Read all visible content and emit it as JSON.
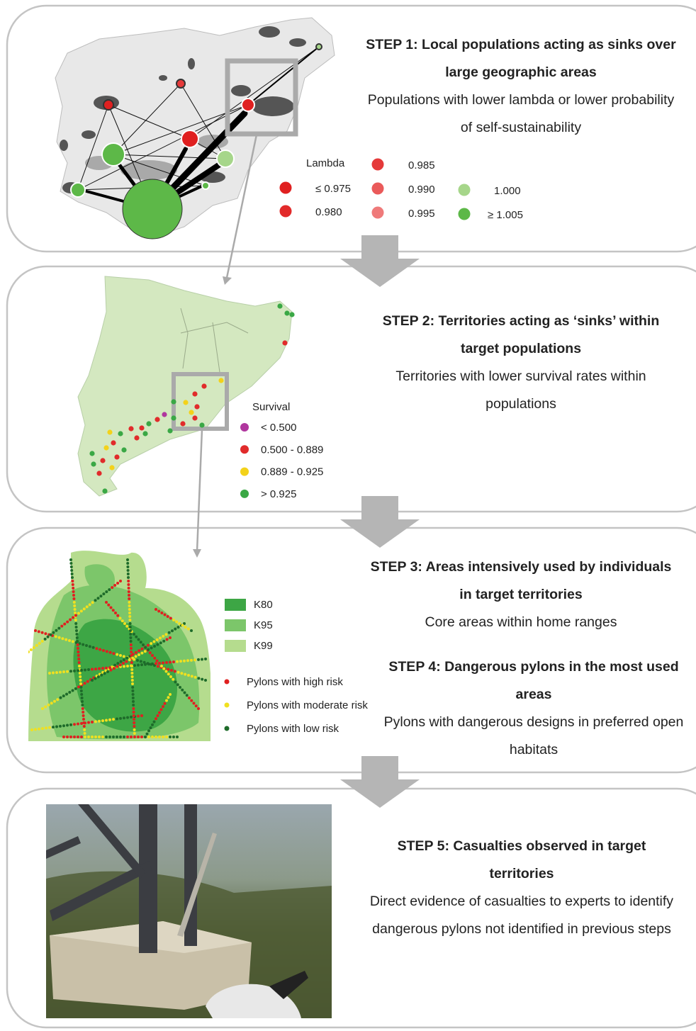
{
  "panels": [
    {
      "steps": [
        {
          "title": "STEP 1: Local populations acting as sinks over large geographic areas",
          "description": "Populations with lower lambda or lower probability of self-sustainability"
        }
      ],
      "legend": {
        "title": "Lambda",
        "items": [
          {
            "label": "≤ 0.975",
            "color": "#e02020"
          },
          {
            "label": "0.980",
            "color": "#e22a2a"
          },
          {
            "label": "0.985",
            "color": "#e53a3a"
          },
          {
            "label": "0.990",
            "color": "#ea5a5a"
          },
          {
            "label": "0.995",
            "color": "#ef7a7a"
          },
          {
            "label": "1.000",
            "color": "#a6d68a"
          },
          {
            "label": "≥ 1.005",
            "color": "#5db848"
          }
        ]
      }
    },
    {
      "steps": [
        {
          "title": "STEP 2: Territories acting as ‘sinks’ within target populations",
          "description": "Territories with lower survival rates within populations"
        }
      ],
      "legend": {
        "title": "Survival",
        "items": [
          {
            "label": "< 0.500",
            "color": "#b0369e"
          },
          {
            "label": "0.500 - 0.889",
            "color": "#e12b2b"
          },
          {
            "label": "0.889 - 0.925",
            "color": "#f3d21a"
          },
          {
            "label": "> 0.925",
            "color": "#3aa845"
          }
        ]
      }
    },
    {
      "steps": [
        {
          "title": "STEP 3: Areas intensively used by individuals in target territories",
          "description": "Core areas within home ranges"
        },
        {
          "title": "STEP 4: Dangerous pylons in the most used areas",
          "description": "Pylons with dangerous designs in preferred open habitats"
        }
      ],
      "legend": {
        "items": [
          {
            "label": "K80",
            "color": "#3da645"
          },
          {
            "label": "K95",
            "color": "#7cc66a"
          },
          {
            "label": "K99",
            "color": "#b5dc8e"
          },
          {
            "label": "Pylons with high risk",
            "color": "#e02020"
          },
          {
            "label": "Pylons with moderate risk",
            "color": "#f0e020"
          },
          {
            "label": "Pylons with low risk",
            "color": "#1e6b2a"
          }
        ]
      }
    },
    {
      "steps": [
        {
          "title": "STEP 5: Casualties observed in target territories",
          "description": "Direct evidence of casualties to experts to identify dangerous pylons not identified in previous steps"
        }
      ]
    }
  ]
}
